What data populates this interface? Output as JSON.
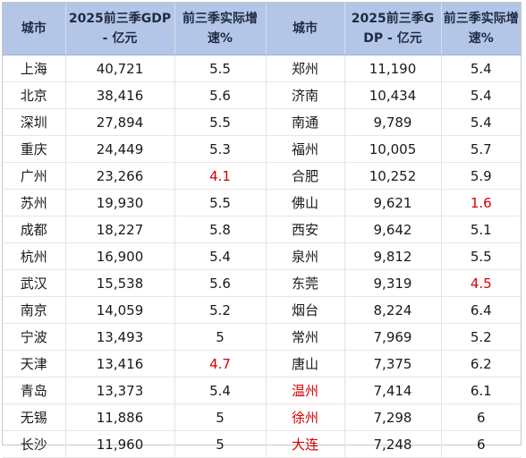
{
  "headers": [
    "城市",
    "2025前三季GDP - 亿元",
    "前三季实际增速%",
    "城市",
    "2025前三季GDP - 亿元",
    "前三季实际增速%"
  ],
  "colors": {
    "header_bg": "#b4c6e7",
    "highlight": "#d40000"
  },
  "rows": [
    [
      {
        "v": "上海"
      },
      {
        "v": "40,721"
      },
      {
        "v": "5.5"
      },
      {
        "v": "郑州"
      },
      {
        "v": "11,190"
      },
      {
        "v": "5.4"
      }
    ],
    [
      {
        "v": "北京"
      },
      {
        "v": "38,416"
      },
      {
        "v": "5.6"
      },
      {
        "v": "济南"
      },
      {
        "v": "10,434"
      },
      {
        "v": "5.4"
      }
    ],
    [
      {
        "v": "深圳"
      },
      {
        "v": "27,894"
      },
      {
        "v": "5.5"
      },
      {
        "v": "南通"
      },
      {
        "v": "9,789"
      },
      {
        "v": "5.4"
      }
    ],
    [
      {
        "v": "重庆"
      },
      {
        "v": "24,449"
      },
      {
        "v": "5.3"
      },
      {
        "v": "福州"
      },
      {
        "v": "10,005"
      },
      {
        "v": "5.7"
      }
    ],
    [
      {
        "v": "广州"
      },
      {
        "v": "23,266"
      },
      {
        "v": "4.1",
        "red": true
      },
      {
        "v": "合肥"
      },
      {
        "v": "10,252"
      },
      {
        "v": "5.9"
      }
    ],
    [
      {
        "v": "苏州"
      },
      {
        "v": "19,930"
      },
      {
        "v": "5.5"
      },
      {
        "v": "佛山"
      },
      {
        "v": "9,621"
      },
      {
        "v": "1.6",
        "red": true
      }
    ],
    [
      {
        "v": "成都"
      },
      {
        "v": "18,227"
      },
      {
        "v": "5.8"
      },
      {
        "v": "西安"
      },
      {
        "v": "9,642"
      },
      {
        "v": "5.1"
      }
    ],
    [
      {
        "v": "杭州"
      },
      {
        "v": "16,900"
      },
      {
        "v": "5.4"
      },
      {
        "v": "泉州"
      },
      {
        "v": "9,812"
      },
      {
        "v": "5.5"
      }
    ],
    [
      {
        "v": "武汉"
      },
      {
        "v": "15,538"
      },
      {
        "v": "5.6"
      },
      {
        "v": "东莞"
      },
      {
        "v": "9,319"
      },
      {
        "v": "4.5",
        "red": true
      }
    ],
    [
      {
        "v": "南京"
      },
      {
        "v": "14,059"
      },
      {
        "v": "5.2"
      },
      {
        "v": "烟台"
      },
      {
        "v": "8,224"
      },
      {
        "v": "6.4"
      }
    ],
    [
      {
        "v": "宁波"
      },
      {
        "v": "13,493"
      },
      {
        "v": "5"
      },
      {
        "v": "常州"
      },
      {
        "v": "7,969"
      },
      {
        "v": "5.2"
      }
    ],
    [
      {
        "v": "天津"
      },
      {
        "v": "13,416"
      },
      {
        "v": "4.7",
        "red": true
      },
      {
        "v": "唐山"
      },
      {
        "v": "7,375"
      },
      {
        "v": "6.2"
      }
    ],
    [
      {
        "v": "青岛"
      },
      {
        "v": "13,373"
      },
      {
        "v": "5.4"
      },
      {
        "v": "温州",
        "red": true
      },
      {
        "v": "7,414"
      },
      {
        "v": "6.1"
      }
    ],
    [
      {
        "v": "无锡"
      },
      {
        "v": "11,886"
      },
      {
        "v": "5"
      },
      {
        "v": "徐州",
        "red": true
      },
      {
        "v": "7,298"
      },
      {
        "v": "6"
      }
    ],
    [
      {
        "v": "长沙"
      },
      {
        "v": "11,960"
      },
      {
        "v": "5"
      },
      {
        "v": "大连",
        "red": true
      },
      {
        "v": "7,248"
      },
      {
        "v": "6"
      }
    ]
  ]
}
